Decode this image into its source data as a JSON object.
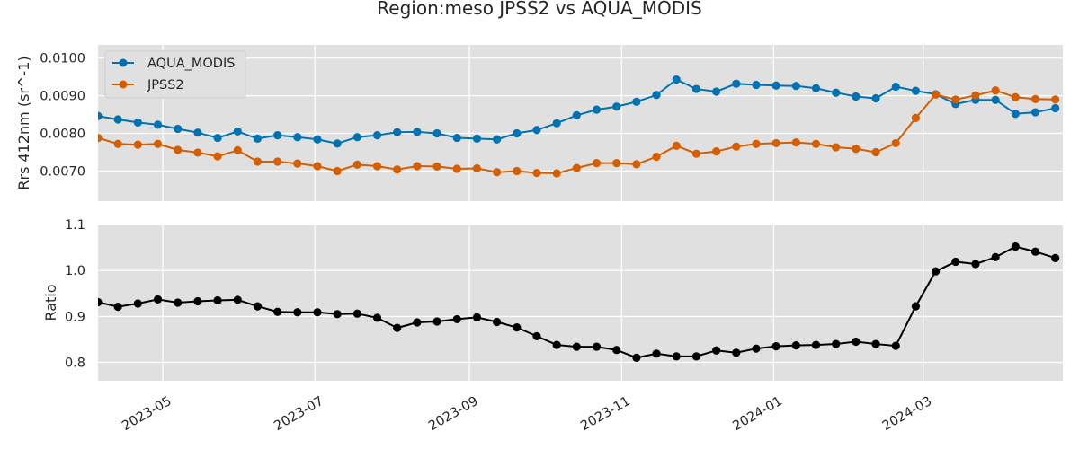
{
  "chart_data": [
    {
      "type": "line",
      "title": "Region:meso JPSS2 vs AQUA_MODIS",
      "xlabel": "",
      "ylabel": "Rrs 412nm (sr^-1)",
      "ylim": [
        0.0062,
        0.01035
      ],
      "yticks": [
        0.007,
        0.008,
        0.009,
        0.01
      ],
      "ytick_labels": [
        "0.0070",
        "0.0080",
        "0.0090",
        "0.0100"
      ],
      "xlim": [
        "2023-04-05",
        "2024-04-26"
      ],
      "grid": true,
      "legend": "top-left",
      "x": [
        "2023-04-05",
        "2023-04-13",
        "2023-04-21",
        "2023-04-29",
        "2023-05-07",
        "2023-05-15",
        "2023-05-23",
        "2023-05-31",
        "2023-06-08",
        "2023-06-16",
        "2023-06-24",
        "2023-07-02",
        "2023-07-10",
        "2023-07-18",
        "2023-07-26",
        "2023-08-03",
        "2023-08-11",
        "2023-08-19",
        "2023-08-27",
        "2023-09-04",
        "2023-09-12",
        "2023-09-20",
        "2023-09-28",
        "2023-10-06",
        "2023-10-14",
        "2023-10-22",
        "2023-10-30",
        "2023-11-07",
        "2023-11-15",
        "2023-11-23",
        "2023-12-01",
        "2023-12-09",
        "2023-12-17",
        "2023-12-25",
        "2024-01-02",
        "2024-01-10",
        "2024-01-18",
        "2024-01-26",
        "2024-02-03",
        "2024-02-11",
        "2024-02-19",
        "2024-02-27",
        "2024-03-06",
        "2024-03-14",
        "2024-03-22",
        "2024-03-30",
        "2024-04-07",
        "2024-04-15",
        "2024-04-23"
      ],
      "series": [
        {
          "name": "AQUA_MODIS",
          "color": "#0072b2",
          "values": [
            0.00846,
            0.00837,
            0.00829,
            0.00823,
            0.00812,
            0.00802,
            0.00788,
            0.00805,
            0.00786,
            0.00795,
            0.0079,
            0.00784,
            0.00773,
            0.0079,
            0.00795,
            0.00803,
            0.00804,
            0.008,
            0.00788,
            0.00786,
            0.00784,
            0.008,
            0.00809,
            0.00827,
            0.00848,
            0.00863,
            0.00871,
            0.00884,
            0.00902,
            0.00943,
            0.00918,
            0.00911,
            0.00932,
            0.00929,
            0.00927,
            0.00926,
            0.0092,
            0.00908,
            0.00898,
            0.00893,
            0.00924,
            0.00913,
            0.00904,
            0.00878,
            0.00889,
            0.00889,
            0.00852,
            0.00856,
            0.00867
          ]
        },
        {
          "name": "JPSS2",
          "color": "#d55e00",
          "values": [
            0.00788,
            0.00772,
            0.0077,
            0.00772,
            0.00756,
            0.00749,
            0.00739,
            0.00755,
            0.00725,
            0.00725,
            0.0072,
            0.00713,
            0.007,
            0.00717,
            0.00713,
            0.00704,
            0.00713,
            0.00712,
            0.00706,
            0.00707,
            0.00697,
            0.007,
            0.00695,
            0.00694,
            0.00708,
            0.00721,
            0.00721,
            0.00718,
            0.00738,
            0.00767,
            0.00746,
            0.00752,
            0.00765,
            0.00772,
            0.00774,
            0.00776,
            0.00772,
            0.00763,
            0.00759,
            0.0075,
            0.00774,
            0.00841,
            0.00903,
            0.0089,
            0.00901,
            0.00914,
            0.00896,
            0.00891,
            0.0089
          ]
        }
      ]
    },
    {
      "type": "line",
      "title": "",
      "xlabel": "",
      "ylabel": "Ratio",
      "ylim": [
        0.76,
        1.1
      ],
      "yticks": [
        0.8,
        0.9,
        1.0,
        1.1
      ],
      "ytick_labels": [
        "0.8",
        "0.9",
        "1.0",
        "1.1"
      ],
      "xlim": [
        "2023-04-05",
        "2024-04-26"
      ],
      "xticks": [
        "2023-05-01",
        "2023-07-01",
        "2023-09-01",
        "2023-11-01",
        "2024-01-01",
        "2024-03-01"
      ],
      "xtick_labels": [
        "2023-05",
        "2023-07",
        "2023-09",
        "2023-11",
        "2024-01",
        "2024-03"
      ],
      "grid": true,
      "x": [
        "2023-04-05",
        "2023-04-13",
        "2023-04-21",
        "2023-04-29",
        "2023-05-07",
        "2023-05-15",
        "2023-05-23",
        "2023-05-31",
        "2023-06-08",
        "2023-06-16",
        "2023-06-24",
        "2023-07-02",
        "2023-07-10",
        "2023-07-18",
        "2023-07-26",
        "2023-08-03",
        "2023-08-11",
        "2023-08-19",
        "2023-08-27",
        "2023-09-04",
        "2023-09-12",
        "2023-09-20",
        "2023-09-28",
        "2023-10-06",
        "2023-10-14",
        "2023-10-22",
        "2023-10-30",
        "2023-11-07",
        "2023-11-15",
        "2023-11-23",
        "2023-12-01",
        "2023-12-09",
        "2023-12-17",
        "2023-12-25",
        "2024-01-02",
        "2024-01-10",
        "2024-01-18",
        "2024-01-26",
        "2024-02-03",
        "2024-02-11",
        "2024-02-19",
        "2024-02-27",
        "2024-03-06",
        "2024-03-14",
        "2024-03-22",
        "2024-03-30",
        "2024-04-07",
        "2024-04-15",
        "2024-04-23"
      ],
      "series": [
        {
          "name": "",
          "color": "#000000",
          "values": [
            0.931,
            0.921,
            0.928,
            0.937,
            0.93,
            0.933,
            0.935,
            0.936,
            0.922,
            0.91,
            0.909,
            0.909,
            0.905,
            0.906,
            0.897,
            0.875,
            0.887,
            0.889,
            0.894,
            0.898,
            0.888,
            0.876,
            0.857,
            0.838,
            0.834,
            0.834,
            0.827,
            0.81,
            0.819,
            0.813,
            0.813,
            0.826,
            0.821,
            0.83,
            0.835,
            0.837,
            0.838,
            0.84,
            0.845,
            0.84,
            0.836,
            0.922,
            0.998,
            1.019,
            1.014,
            1.029,
            1.052,
            1.041,
            1.027
          ]
        }
      ]
    }
  ]
}
